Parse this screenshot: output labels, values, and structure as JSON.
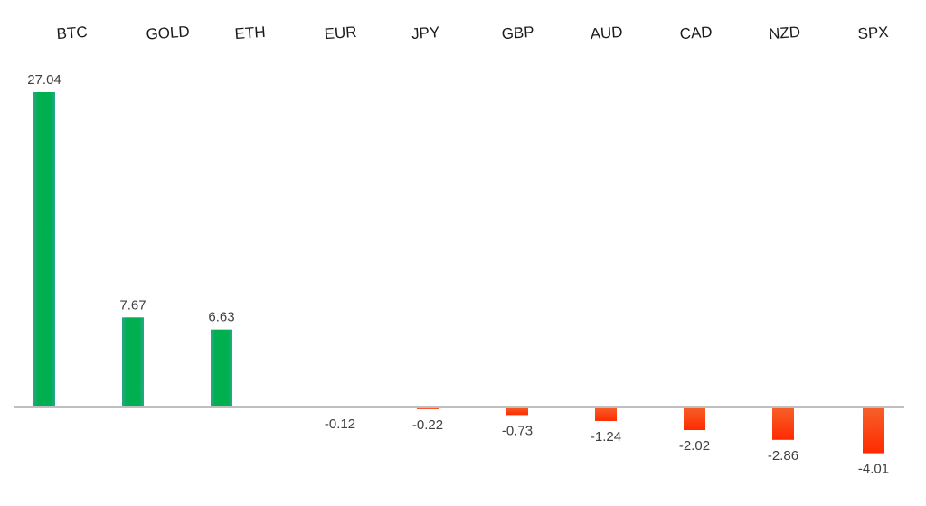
{
  "chart_data": {
    "type": "bar",
    "title": "",
    "xlabel": "",
    "ylabel": "",
    "categories": [
      "BTC",
      "GOLD",
      "ETH",
      "EUR",
      "JPY",
      "GBP",
      "AUD",
      "CAD",
      "NZD",
      "SPX"
    ],
    "values": [
      27.04,
      7.67,
      6.63,
      -0.12,
      -0.22,
      -0.73,
      -1.24,
      -2.02,
      -2.86,
      -4.01
    ],
    "value_labels": [
      "27.04",
      "7.67",
      "6.63",
      "-0.12",
      "-0.22",
      "-0.73",
      "-1.24",
      "-2.02",
      "-2.86",
      "-4.01"
    ],
    "ylim": [
      -5,
      28
    ],
    "grid": false,
    "legend": "none",
    "colors": {
      "positive": "#00b050",
      "negative": "#ff3d00",
      "axis": "#bfbfbf"
    }
  }
}
